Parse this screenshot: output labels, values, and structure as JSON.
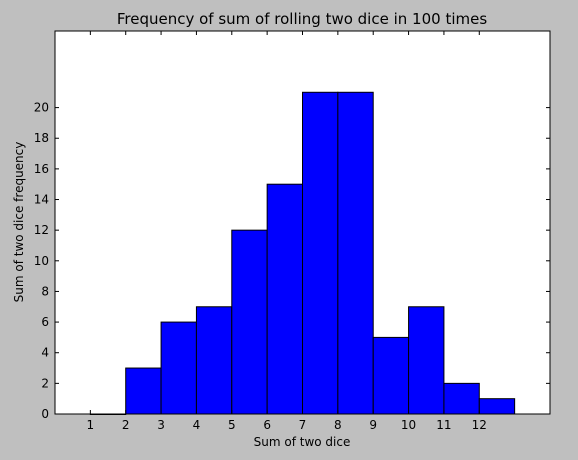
{
  "chart_data": {
    "type": "bar",
    "title": "Frequency of sum of rolling two dice in 100 times",
    "xlabel": "Sum of two dice",
    "ylabel": "Sum of two dice frequency",
    "categories": [
      "1",
      "2",
      "3",
      "4",
      "5",
      "6",
      "7",
      "8",
      "9",
      "10",
      "11",
      "12"
    ],
    "bins": [
      {
        "x0": 1,
        "x1": 2,
        "value": 0
      },
      {
        "x0": 2,
        "x1": 3,
        "value": 3
      },
      {
        "x0": 3,
        "x1": 4,
        "value": 6
      },
      {
        "x0": 4,
        "x1": 5,
        "value": 7
      },
      {
        "x0": 5,
        "x1": 6,
        "value": 12
      },
      {
        "x0": 6,
        "x1": 7,
        "value": 15
      },
      {
        "x0": 7,
        "x1": 8,
        "value": 21
      },
      {
        "x0": 8,
        "x1": 9,
        "value": 21
      },
      {
        "x0": 9,
        "x1": 10,
        "value": 5
      },
      {
        "x0": 10,
        "x1": 11,
        "value": 7
      },
      {
        "x0": 11,
        "x1": 12,
        "value": 2
      },
      {
        "x0": 12,
        "x1": 13,
        "value": 1
      }
    ],
    "xlim": [
      0,
      14
    ],
    "ylim": [
      0,
      25
    ],
    "yticks": [
      0,
      2,
      4,
      6,
      8,
      10,
      12,
      14,
      16,
      18,
      20
    ],
    "xticks": [
      1,
      2,
      3,
      4,
      5,
      6,
      7,
      8,
      9,
      10,
      11,
      12
    ],
    "grid": false,
    "colors": {
      "bar_fill": "#0000ff",
      "bar_edge": "#000000",
      "figure_bg": "#bfbfbf",
      "axes_bg": "#ffffff"
    }
  }
}
